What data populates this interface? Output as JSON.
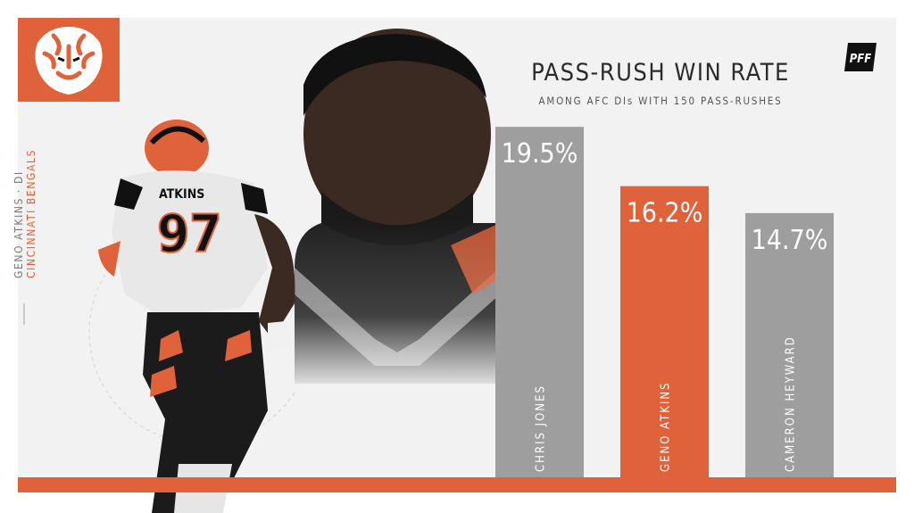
{
  "player": {
    "name_position": "GENO ATKINS · DI",
    "team": "CINCINNATI BENGALS"
  },
  "branding": {
    "logo_icon": "bengals-tiger-head-icon",
    "pff_logo_text": "PFF",
    "accent_color": "#e0623a",
    "neutral_bar_color": "#9e9e9e"
  },
  "chart_data": {
    "type": "bar",
    "title": "PASS-RUSH WIN RATE",
    "subtitle": "AMONG AFC DIs WITH 150 PASS-RUSHES",
    "categories": [
      "CHRIS JONES",
      "GENO ATKINS",
      "CAMERON HEYWARD"
    ],
    "values": [
      19.5,
      16.2,
      14.7
    ],
    "value_labels": [
      "19.5%",
      "16.2%",
      "14.7%"
    ],
    "highlight": "GENO ATKINS",
    "colors": [
      "#9e9e9e",
      "#e0623a",
      "#9e9e9e"
    ],
    "ylim": [
      0,
      20.6
    ],
    "xlabel": "",
    "ylabel": "",
    "grid": false,
    "legend": "none"
  }
}
